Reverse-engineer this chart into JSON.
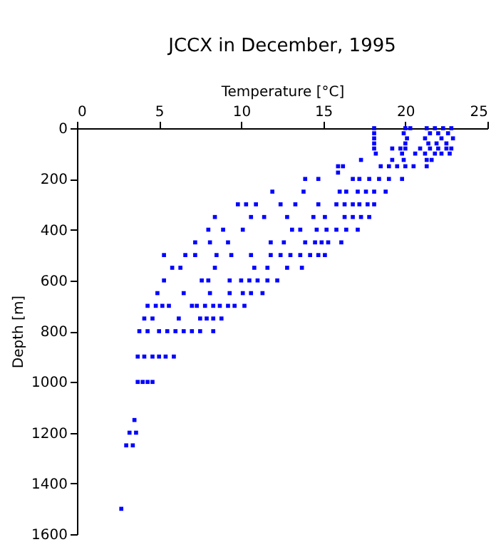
{
  "chart_data": {
    "type": "scatter",
    "title": "JCCX in December, 1995",
    "xlabel": "Temperature [°C]",
    "ylabel": "Depth [m]",
    "x": [
      18.1,
      20.0,
      20.3,
      21.3,
      21.8,
      22.3,
      22.8,
      18.1,
      19.9,
      21.5,
      22.0,
      22.6,
      18.1,
      20.1,
      21.2,
      22.2,
      22.9,
      18.1,
      20.0,
      21.4,
      21.9,
      22.5,
      18.1,
      19.2,
      19.7,
      20.0,
      20.9,
      21.5,
      22.0,
      22.5,
      22.8,
      18.2,
      19.8,
      20.6,
      21.2,
      21.8,
      22.2,
      22.7,
      17.3,
      19.2,
      19.9,
      21.3,
      21.6,
      15.9,
      16.2,
      18.5,
      19.0,
      19.5,
      20.0,
      20.5,
      21.3,
      15.9,
      13.9,
      14.7,
      16.8,
      17.2,
      17.8,
      18.4,
      19.0,
      19.8,
      11.9,
      13.8,
      16.0,
      16.4,
      17.1,
      17.6,
      18.1,
      18.8,
      9.8,
      10.3,
      10.9,
      12.4,
      13.3,
      14.7,
      15.8,
      16.3,
      16.8,
      17.2,
      17.7,
      18.1,
      8.4,
      10.6,
      11.4,
      12.8,
      14.4,
      15.1,
      16.3,
      16.8,
      17.3,
      17.8,
      8.0,
      8.9,
      10.1,
      13.1,
      13.6,
      14.6,
      15.2,
      15.8,
      16.4,
      17.1,
      7.2,
      8.1,
      9.2,
      11.8,
      12.6,
      13.9,
      14.5,
      14.9,
      15.3,
      16.1,
      5.3,
      6.6,
      7.2,
      8.5,
      9.4,
      10.6,
      11.8,
      12.4,
      13.0,
      13.6,
      14.2,
      14.7,
      15.1,
      5.8,
      6.3,
      8.4,
      10.8,
      11.6,
      12.8,
      13.7,
      5.3,
      7.6,
      8.0,
      9.3,
      10.0,
      10.5,
      11.0,
      11.6,
      12.2,
      4.9,
      6.5,
      8.1,
      9.3,
      10.1,
      10.6,
      11.3,
      4.3,
      4.8,
      5.2,
      5.6,
      7.0,
      7.3,
      7.8,
      8.3,
      8.7,
      9.2,
      9.6,
      10.2,
      4.1,
      4.6,
      6.2,
      7.5,
      7.9,
      8.3,
      8.8,
      3.8,
      4.3,
      5.0,
      5.5,
      6.0,
      6.5,
      7.0,
      7.5,
      8.3,
      3.7,
      4.1,
      4.6,
      5.0,
      5.4,
      5.9,
      3.7,
      4.0,
      4.3,
      4.6,
      3.5,
      3.2,
      3.6,
      3.0,
      3.4,
      2.7
    ],
    "values": [
      0,
      0,
      0,
      0,
      0,
      0,
      0,
      20,
      20,
      20,
      20,
      20,
      40,
      40,
      40,
      40,
      40,
      60,
      60,
      60,
      60,
      60,
      80,
      80,
      80,
      80,
      80,
      80,
      80,
      80,
      80,
      100,
      100,
      100,
      100,
      100,
      100,
      100,
      125,
      125,
      125,
      125,
      125,
      150,
      150,
      150,
      150,
      150,
      150,
      150,
      150,
      175,
      200,
      200,
      200,
      200,
      200,
      200,
      200,
      200,
      250,
      250,
      250,
      250,
      250,
      250,
      250,
      250,
      300,
      300,
      300,
      300,
      300,
      300,
      300,
      300,
      300,
      300,
      300,
      300,
      350,
      350,
      350,
      350,
      350,
      350,
      350,
      350,
      350,
      350,
      400,
      400,
      400,
      400,
      400,
      400,
      400,
      400,
      400,
      400,
      450,
      450,
      450,
      450,
      450,
      450,
      450,
      450,
      450,
      450,
      500,
      500,
      500,
      500,
      500,
      500,
      500,
      500,
      500,
      500,
      500,
      500,
      500,
      550,
      550,
      550,
      550,
      550,
      550,
      550,
      600,
      600,
      600,
      600,
      600,
      600,
      600,
      600,
      600,
      650,
      650,
      650,
      650,
      650,
      650,
      650,
      700,
      700,
      700,
      700,
      700,
      700,
      700,
      700,
      700,
      700,
      700,
      700,
      750,
      750,
      750,
      750,
      750,
      750,
      750,
      800,
      800,
      800,
      800,
      800,
      800,
      800,
      800,
      800,
      900,
      900,
      900,
      900,
      900,
      900,
      1000,
      1000,
      1000,
      1000,
      1150,
      1200,
      1200,
      1250,
      1250,
      1500
    ],
    "color": "#0000ff",
    "marker": "square",
    "xlim": [
      0,
      25
    ],
    "xticks": [
      0,
      5,
      10,
      15,
      20,
      25
    ],
    "ylim": [
      1600,
      0
    ],
    "yticks": [
      0,
      200,
      400,
      600,
      800,
      1000,
      1200,
      1400,
      1600
    ],
    "grid": false
  }
}
